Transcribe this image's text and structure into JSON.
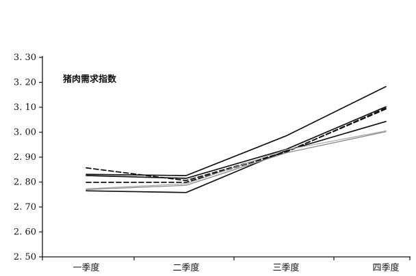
{
  "chart_data": {
    "type": "line",
    "title": "猪肉需求指数",
    "xlabel": "",
    "ylabel": "",
    "categories": [
      "一季度",
      "二季度",
      "三季度",
      "四季度"
    ],
    "ylim": [
      2.5,
      3.3
    ],
    "yticks": [
      "2.50",
      "2.60",
      "2.70",
      "2.80",
      "2.90",
      "3.00",
      "3.10",
      "3.20",
      "3.30"
    ],
    "grid": false,
    "legend": "none",
    "series": [
      {
        "style": "solid",
        "color": "#111111",
        "values": [
          2.831,
          2.826,
          2.985,
          3.183
        ]
      },
      {
        "style": "solid",
        "color": "#111111",
        "values": [
          2.826,
          2.815,
          2.931,
          3.102
        ]
      },
      {
        "style": "dashed",
        "color": "#111111",
        "values": [
          2.857,
          2.806,
          2.921,
          3.093
        ]
      },
      {
        "style": "dashed",
        "color": "#111111",
        "values": [
          2.799,
          2.799,
          2.92,
          3.097
        ]
      },
      {
        "style": "solid",
        "color": "#111111",
        "values": [
          2.765,
          2.758,
          2.926,
          3.043
        ]
      },
      {
        "style": "solid",
        "color": "#888888",
        "values": [
          2.77,
          2.787,
          2.917,
          3.002
        ]
      },
      {
        "style": "solid",
        "color": "#aaaaaa",
        "values": [
          2.773,
          2.793,
          2.929,
          3.005
        ]
      }
    ]
  }
}
